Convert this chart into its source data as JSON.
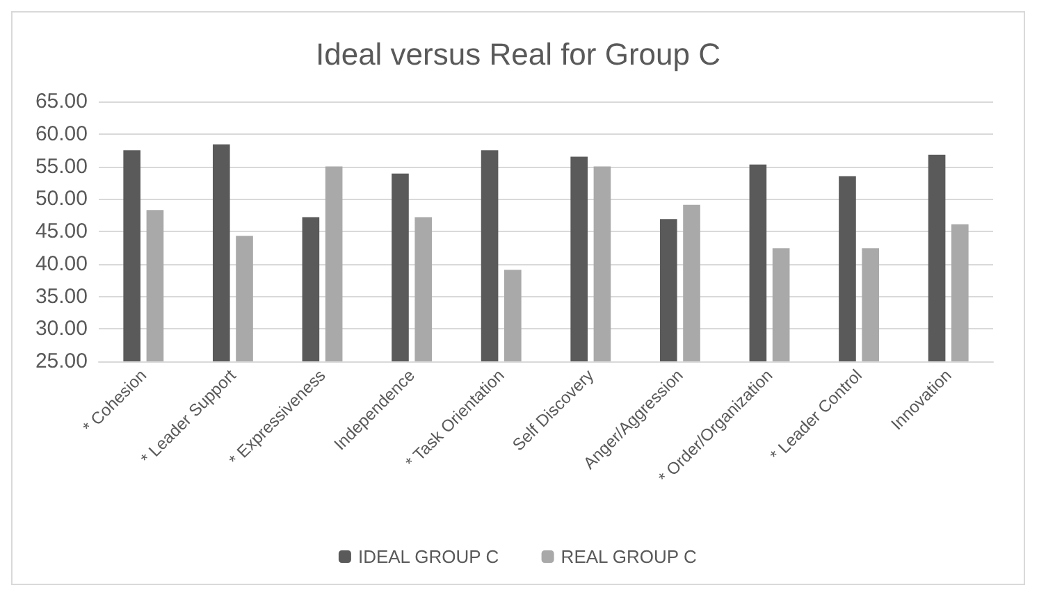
{
  "chart_data": {
    "type": "bar",
    "title": "Ideal versus Real for Group C",
    "categories": [
      "* Cohesion",
      "* Leader Support",
      "* Expressiveness",
      "Independence",
      "* Task Orientation",
      "Self Discovery",
      "Anger/Aggression",
      "* Order/Organization",
      "* Leader Control",
      "Innovation"
    ],
    "series": [
      {
        "name": "IDEAL GROUP C",
        "color": "#5a5a5a",
        "values": [
          57.5,
          58.4,
          47.2,
          53.9,
          57.5,
          56.5,
          46.9,
          55.3,
          53.5,
          56.8
        ]
      },
      {
        "name": "REAL GROUP C",
        "color": "#a9a9a9",
        "values": [
          48.3,
          44.3,
          55.0,
          47.2,
          39.1,
          55.0,
          49.1,
          42.4,
          42.4,
          46.1
        ]
      }
    ],
    "ylim": [
      25,
      65
    ],
    "yticks": [
      {
        "value": 25,
        "label": "25.00"
      },
      {
        "value": 30,
        "label": "30.00"
      },
      {
        "value": 35,
        "label": "35.00"
      },
      {
        "value": 40,
        "label": "40.00"
      },
      {
        "value": 45,
        "label": "45.00"
      },
      {
        "value": 50,
        "label": "50.00"
      },
      {
        "value": 55,
        "label": "55.00"
      },
      {
        "value": 60,
        "label": "60.00"
      },
      {
        "value": 65,
        "label": "65.00"
      }
    ],
    "grid": "y",
    "legend": "bottom"
  }
}
